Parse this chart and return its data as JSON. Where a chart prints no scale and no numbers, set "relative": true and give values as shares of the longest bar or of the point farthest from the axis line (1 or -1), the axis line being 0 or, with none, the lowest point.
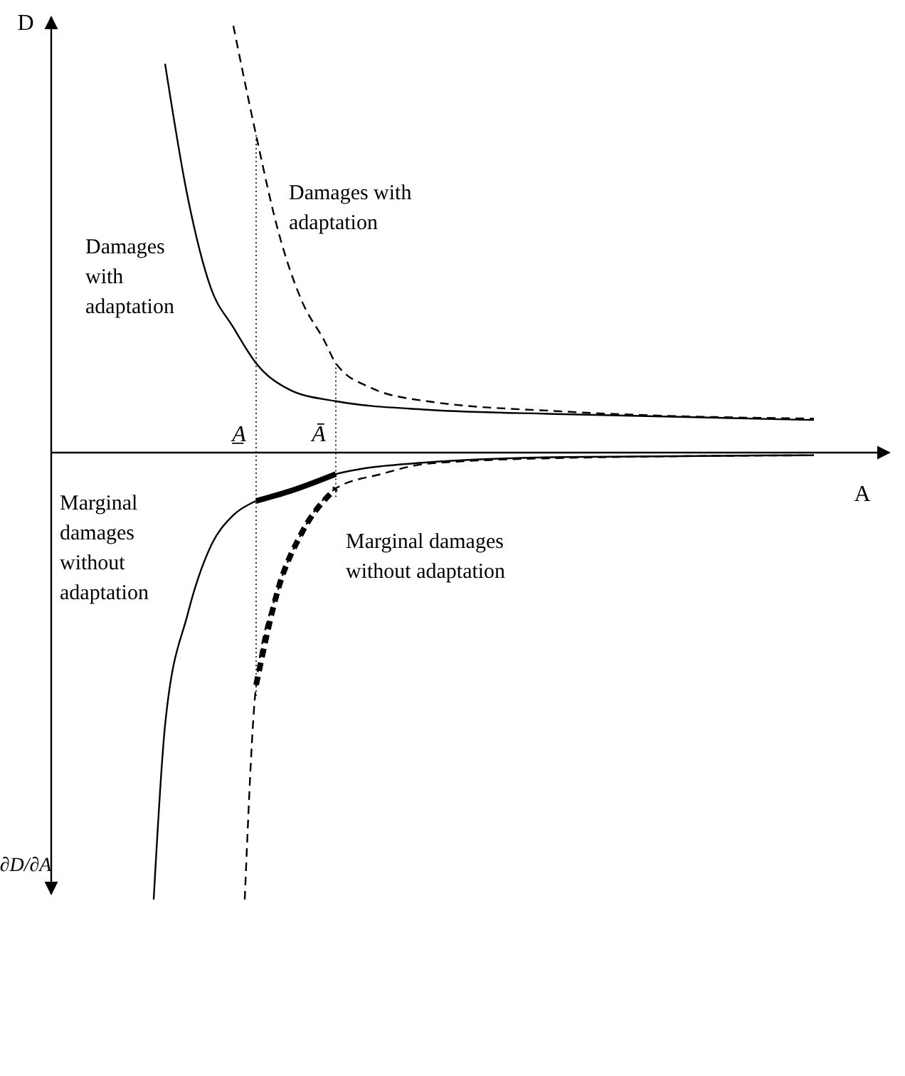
{
  "chart_data": {
    "type": "line",
    "relative": true,
    "xlabel": "A",
    "ylabel": "D",
    "annotations": [
      "∂D/∂A",
      "A̲",
      "Ā"
    ],
    "legend": false,
    "categories": [
      null,
      null,
      null,
      null,
      null,
      null,
      null,
      null,
      null,
      null,
      null,
      null,
      null,
      null,
      null,
      null,
      null,
      null,
      null,
      null,
      null,
      null,
      null,
      null,
      null,
      null,
      null,
      null,
      null,
      null,
      null,
      null,
      null,
      null,
      null,
      null,
      null,
      null,
      null,
      null,
      null,
      null,
      null,
      null,
      null,
      null,
      null,
      null,
      null,
      null,
      null,
      null,
      null,
      null,
      null,
      null,
      null,
      null,
      null,
      null,
      null,
      null,
      null,
      null,
      null,
      null,
      null,
      null,
      null,
      null,
      null,
      null,
      null,
      null
    ],
    "series": [
      {
        "name": "Damages with adaptation",
        "color": "#000000",
        "line_style": "solid",
        "values": [
          null,
          null,
          null,
          null,
          null,
          null,
          null,
          null,
          null,
          null,
          0.87,
          null,
          0.57,
          null,
          0.37,
          null,
          0.28,
          null,
          0.2,
          null,
          null,
          0.14,
          null,
          null,
          null,
          0.115,
          null,
          null,
          null,
          null,
          null,
          null,
          null,
          0.096,
          null,
          null,
          null,
          null,
          null,
          null,
          null,
          null,
          null,
          null,
          null,
          0.086,
          null,
          null,
          null,
          null,
          null,
          null,
          null,
          null,
          null,
          null,
          null,
          null,
          null,
          null,
          null,
          null,
          null,
          null,
          null,
          null,
          null,
          0.073,
          null,
          null,
          null,
          null,
          null,
          null
        ]
      },
      {
        "name": "Damages with adaptation",
        "color": "#000000",
        "line_style": "dashed",
        "values": [
          null,
          null,
          null,
          null,
          null,
          null,
          null,
          null,
          null,
          null,
          null,
          null,
          null,
          null,
          null,
          null,
          0.955,
          null,
          0.71,
          null,
          0.49,
          null,
          0.34,
          null,
          0.25,
          0.2,
          null,
          null,
          0.146,
          null,
          null,
          null,
          null,
          0.115,
          null,
          null,
          null,
          null,
          null,
          null,
          null,
          null,
          null,
          null,
          null,
          0.092,
          null,
          null,
          null,
          null,
          null,
          null,
          null,
          null,
          null,
          null,
          null,
          null,
          null,
          null,
          null,
          null,
          null,
          null,
          null,
          null,
          null,
          0.076,
          null,
          null,
          null,
          null,
          null,
          null
        ]
      },
      {
        "name": "Marginal damages without adaptation",
        "color": "#000000",
        "line_style": "solid",
        "values": [
          null,
          null,
          null,
          null,
          null,
          null,
          null,
          null,
          null,
          -1,
          -0.61,
          null,
          -0.36,
          null,
          -0.21,
          null,
          -0.14,
          null,
          -0.108,
          null,
          null,
          -0.086,
          null,
          null,
          null,
          -0.048,
          null,
          null,
          null,
          null,
          null,
          null,
          null,
          -0.022,
          null,
          null,
          null,
          null,
          null,
          null,
          null,
          null,
          null,
          null,
          null,
          -0.01,
          null,
          null,
          null,
          null,
          null,
          null,
          null,
          null,
          null,
          null,
          null,
          null,
          null,
          null,
          null,
          null,
          null,
          null,
          null,
          null,
          null,
          -0.006,
          null,
          null,
          null,
          null,
          null,
          null
        ]
      },
      {
        "name": "Marginal damages without adaptation",
        "color": "#000000",
        "line_style": "dashed",
        "values": [
          null,
          null,
          null,
          null,
          null,
          null,
          null,
          null,
          null,
          null,
          null,
          null,
          null,
          null,
          null,
          null,
          null,
          -1,
          -0.52,
          null,
          -0.3,
          null,
          -0.18,
          null,
          null,
          -0.08,
          null,
          null,
          null,
          -0.048,
          null,
          null,
          null,
          -0.025,
          null,
          null,
          null,
          null,
          null,
          null,
          null,
          null,
          null,
          null,
          null,
          -0.012,
          null,
          null,
          null,
          null,
          null,
          null,
          null,
          null,
          null,
          null,
          null,
          null,
          null,
          null,
          null,
          null,
          null,
          null,
          null,
          null,
          null,
          -0.006,
          null,
          null,
          null,
          null,
          null,
          null
        ]
      },
      {
        "color": "#000000",
        "line_style": "solid",
        "values": [
          null,
          null,
          null,
          null,
          null,
          null,
          null,
          null,
          null,
          null,
          null,
          null,
          null,
          null,
          null,
          null,
          null,
          null,
          -0.108,
          null,
          null,
          -0.086,
          null,
          null,
          null,
          -0.048,
          null,
          null,
          null,
          null,
          null,
          null,
          null,
          null,
          null,
          null,
          null,
          null,
          null,
          null,
          null,
          null,
          null,
          null,
          null,
          null,
          null,
          null,
          null,
          null,
          null,
          null,
          null,
          null,
          null,
          null,
          null,
          null,
          null,
          null,
          null,
          null,
          null,
          null,
          null,
          null,
          null,
          null,
          null,
          null,
          null,
          null,
          null,
          null
        ]
      },
      {
        "color": "#000000",
        "line_style": "dashed",
        "values": [
          null,
          null,
          null,
          null,
          null,
          null,
          null,
          null,
          null,
          null,
          null,
          null,
          null,
          null,
          null,
          null,
          null,
          null,
          -0.52,
          null,
          -0.3,
          null,
          -0.18,
          null,
          null,
          -0.08,
          null,
          null,
          null,
          null,
          null,
          null,
          null,
          null,
          null,
          null,
          null,
          null,
          null,
          null,
          null,
          null,
          null,
          null,
          null,
          null,
          null,
          null,
          null,
          null,
          null,
          null,
          null,
          null,
          null,
          null,
          null,
          null,
          null,
          null,
          null,
          null,
          null,
          null,
          null,
          null,
          null,
          null,
          null,
          null,
          null,
          null,
          null,
          null
        ]
      }
    ]
  }
}
